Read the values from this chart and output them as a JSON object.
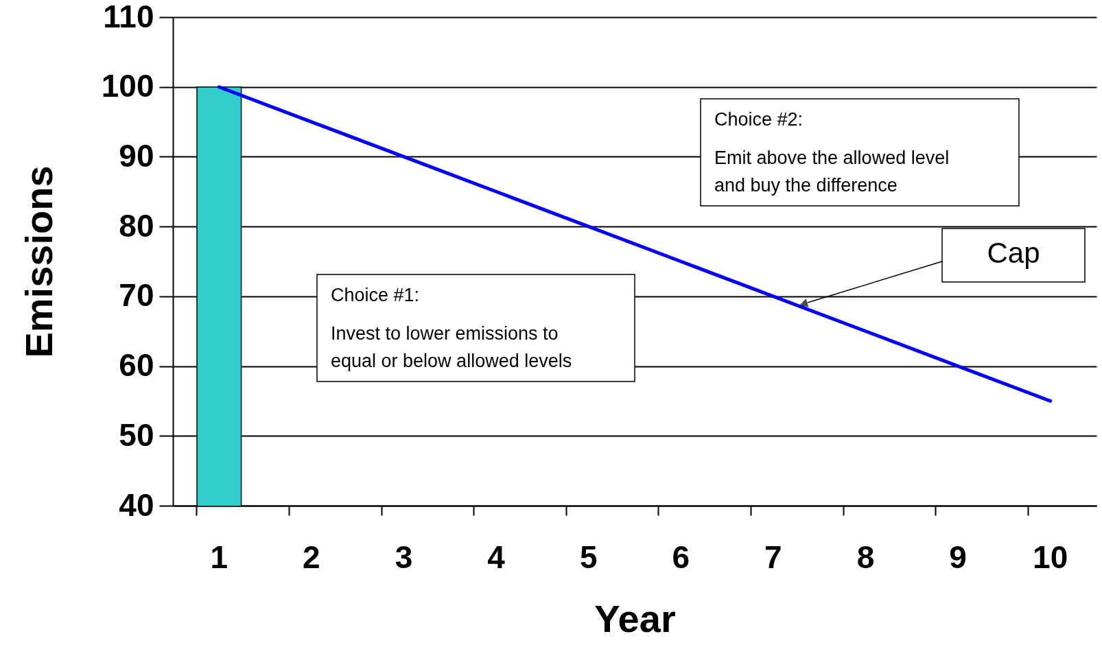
{
  "chart_data": {
    "type": "bar",
    "xlabel": "Year",
    "ylabel": "Emissions",
    "categories": [
      "1",
      "2",
      "3",
      "4",
      "5",
      "6",
      "7",
      "8",
      "9",
      "10"
    ],
    "series": [
      {
        "color": "#33cccc",
        "values": [
          100,
          null,
          null,
          null,
          null,
          null,
          null,
          null,
          null,
          null
        ]
      },
      {
        "type": "line",
        "color": "#0000ff",
        "values": [
          100,
          95,
          90,
          85,
          80,
          75,
          70,
          65,
          60,
          55
        ]
      }
    ],
    "ylim": [
      40,
      110
    ],
    "yticks": [
      40,
      50,
      60,
      70,
      80,
      90,
      100,
      110
    ],
    "grid": "y",
    "legend": false,
    "marker": "none",
    "line_style": "solid",
    "annotations": [
      "Choice #1:\nInvest to lower emissions to\nequal or below allowed levels",
      "Choice #2:\nEmit above the allowed level\nand buy the difference",
      "Cap"
    ]
  }
}
